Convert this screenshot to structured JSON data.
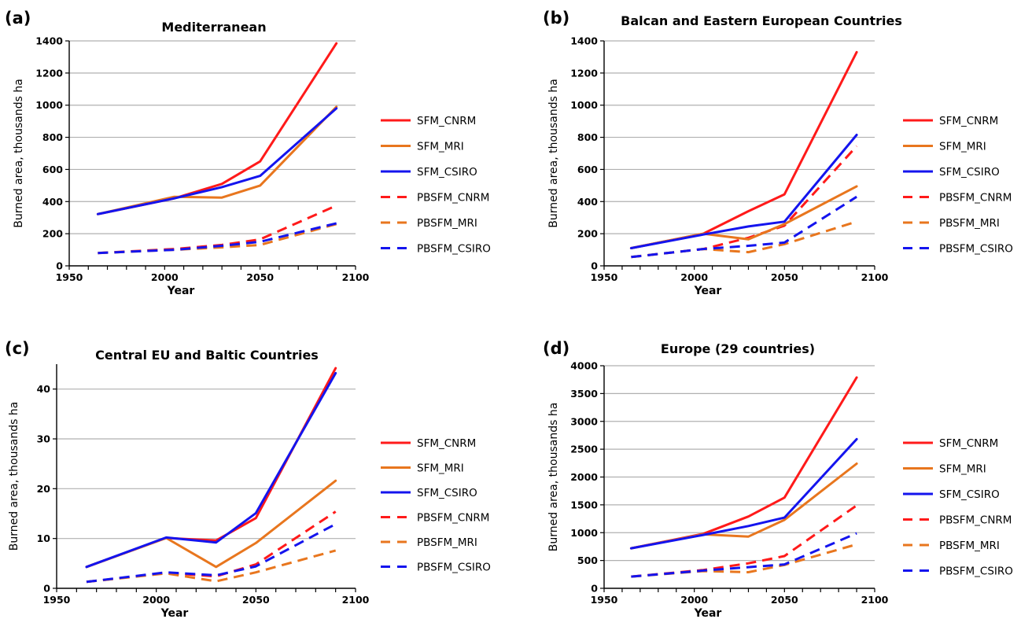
{
  "colors": {
    "SFM_CNRM": "#ff1a1a",
    "SFM_MRI": "#e8761e",
    "SFM_CSIRO": "#1414ee",
    "PBSFM_CNRM": "#ff1a1a",
    "PBSFM_MRI": "#e8761e",
    "PBSFM_CSIRO": "#1414ee",
    "grid": "#b0b0b0",
    "axis": "#000000"
  },
  "chart_data": [
    {
      "type": "line",
      "panel": "(a)",
      "title": "Mediterranean",
      "xlabel": "Year",
      "ylabel": "Burned area, thousands ha",
      "xlim": [
        1950,
        2100
      ],
      "xticks": [
        "1950",
        "2000",
        "2050",
        "2100"
      ],
      "ylim": [
        0,
        1400
      ],
      "yticks": [
        "0",
        "200",
        "400",
        "600",
        "800",
        "1000",
        "1200",
        "1400"
      ],
      "grid": true,
      "legend": "right",
      "x": [
        1965,
        2005,
        2030,
        2050,
        2090
      ],
      "series": [
        {
          "name": "SFM_CNRM",
          "style": "solid",
          "values": [
            322,
            420,
            510,
            650,
            1385
          ]
        },
        {
          "name": "SFM_MRI",
          "style": "solid",
          "values": [
            322,
            430,
            425,
            500,
            990
          ]
        },
        {
          "name": "SFM_CSIRO",
          "style": "solid",
          "values": [
            322,
            420,
            490,
            560,
            980
          ]
        },
        {
          "name": "PBSFM_CNRM",
          "style": "dashed",
          "values": [
            80,
            105,
            130,
            165,
            375
          ]
        },
        {
          "name": "PBSFM_MRI",
          "style": "dashed",
          "values": [
            80,
            100,
            115,
            130,
            260
          ]
        },
        {
          "name": "PBSFM_CSIRO",
          "style": "dashed",
          "values": [
            80,
            100,
            125,
            150,
            265
          ]
        }
      ]
    },
    {
      "type": "line",
      "panel": "(b)",
      "title": "Balcan and Eastern European Countries",
      "xlabel": "Year",
      "ylabel": "Burned area, thousands ha",
      "xlim": [
        1950,
        2100
      ],
      "xticks": [
        "1950",
        "2000",
        "2050",
        "2100"
      ],
      "ylim": [
        0,
        1400
      ],
      "yticks": [
        "0",
        "200",
        "400",
        "600",
        "800",
        "1000",
        "1200",
        "1400"
      ],
      "grid": true,
      "legend": "right",
      "x": [
        1965,
        2005,
        2030,
        2050,
        2090
      ],
      "series": [
        {
          "name": "SFM_CNRM",
          "style": "solid",
          "values": [
            110,
            200,
            340,
            445,
            1330
          ]
        },
        {
          "name": "SFM_MRI",
          "style": "solid",
          "values": [
            110,
            200,
            165,
            260,
            495
          ]
        },
        {
          "name": "SFM_CSIRO",
          "style": "solid",
          "values": [
            110,
            195,
            245,
            275,
            815
          ]
        },
        {
          "name": "PBSFM_CNRM",
          "style": "dashed",
          "values": [
            55,
            105,
            175,
            250,
            745
          ]
        },
        {
          "name": "PBSFM_MRI",
          "style": "dashed",
          "values": [
            55,
            105,
            85,
            135,
            275
          ]
        },
        {
          "name": "PBSFM_CSIRO",
          "style": "dashed",
          "values": [
            55,
            105,
            125,
            145,
            430
          ]
        }
      ]
    },
    {
      "type": "line",
      "panel": "(c)",
      "title": "Central EU and Baltic Countries",
      "xlabel": "Year",
      "ylabel": "Burned area, thousands ha",
      "xlim": [
        1950,
        2100
      ],
      "xticks": [
        "1950",
        "2000",
        "2050",
        "2100"
      ],
      "ylim": [
        0,
        45
      ],
      "yticks": [
        "0",
        "10",
        "20",
        "30",
        "40"
      ],
      "grid": true,
      "legend": "right",
      "x": [
        1965,
        2005,
        2030,
        2050,
        2090
      ],
      "series": [
        {
          "name": "SFM_CNRM",
          "style": "solid",
          "values": [
            4.3,
            10.1,
            9.6,
            14.1,
            44.2
          ]
        },
        {
          "name": "SFM_MRI",
          "style": "solid",
          "values": [
            4.3,
            10.1,
            4.3,
            9.1,
            21.6
          ]
        },
        {
          "name": "SFM_CSIRO",
          "style": "solid",
          "values": [
            4.3,
            10.2,
            9.2,
            15.1,
            43.2
          ]
        },
        {
          "name": "PBSFM_CNRM",
          "style": "dashed",
          "values": [
            1.3,
            3.1,
            2.4,
            4.8,
            15.4
          ]
        },
        {
          "name": "PBSFM_MRI",
          "style": "dashed",
          "values": [
            1.3,
            3.0,
            1.4,
            3.2,
            7.6
          ]
        },
        {
          "name": "PBSFM_CSIRO",
          "style": "dashed",
          "values": [
            1.3,
            3.2,
            2.6,
            4.4,
            12.9
          ]
        }
      ]
    },
    {
      "type": "line",
      "panel": "(d)",
      "title": "Europe (29 countries)",
      "xlabel": "Year",
      "ylabel": "Burned area, thousands ha",
      "xlim": [
        1950,
        2100
      ],
      "xticks": [
        "1950",
        "2000",
        "2050",
        "2100"
      ],
      "ylim": [
        0,
        4000
      ],
      "yticks": [
        "0",
        "500",
        "1000",
        "1500",
        "2000",
        "2500",
        "3000",
        "3500",
        "4000"
      ],
      "grid": true,
      "legend": "right",
      "x": [
        1965,
        2005,
        2030,
        2050,
        2090
      ],
      "series": [
        {
          "name": "SFM_CNRM",
          "style": "solid",
          "values": [
            720,
            980,
            1290,
            1630,
            3790
          ]
        },
        {
          "name": "SFM_MRI",
          "style": "solid",
          "values": [
            720,
            970,
            930,
            1230,
            2240
          ]
        },
        {
          "name": "SFM_CSIRO",
          "style": "solid",
          "values": [
            720,
            960,
            1120,
            1270,
            2680
          ]
        },
        {
          "name": "PBSFM_CNRM",
          "style": "dashed",
          "values": [
            210,
            330,
            450,
            580,
            1490
          ]
        },
        {
          "name": "PBSFM_MRI",
          "style": "dashed",
          "values": [
            210,
            310,
            290,
            420,
            790
          ]
        },
        {
          "name": "PBSFM_CSIRO",
          "style": "dashed",
          "values": [
            210,
            320,
            380,
            430,
            990
          ]
        }
      ]
    }
  ]
}
